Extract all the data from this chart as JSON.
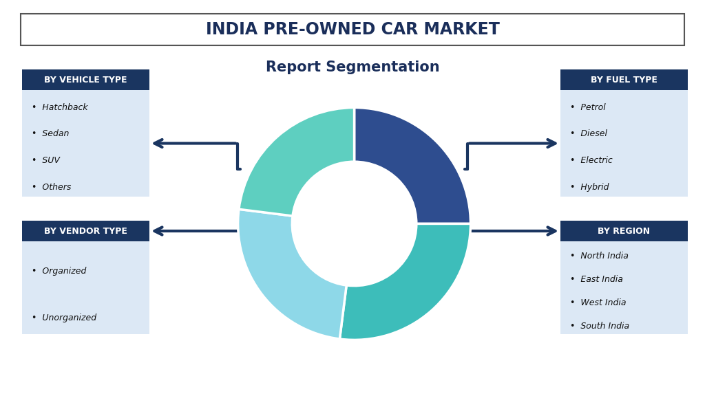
{
  "title": "INDIA PRE-OWNED CAR MARKET",
  "subtitle": "Report Segmentation",
  "background_color": "#ffffff",
  "title_box_color": "#ffffff",
  "title_border_color": "#555555",
  "title_text_color": "#1a2e5a",
  "subtitle_color": "#1a2e5a",
  "donut_colors": [
    "#2e4d8f",
    "#3dbdba",
    "#8ed8e8",
    "#5ecfc0"
  ],
  "donut_segments": [
    0.25,
    0.27,
    0.25,
    0.23
  ],
  "dark_header_bg": "#1a3560",
  "dark_header_text": "#ffffff",
  "light_box_bg": "#dce8f5",
  "light_box_text": "#111111",
  "arrow_color": "#1a3560",
  "boxes": [
    {
      "label": "BY VEHICLE TYPE",
      "items": [
        "Hatchback",
        "Sedan",
        "SUV",
        "Others"
      ],
      "side": "left",
      "row": "top"
    },
    {
      "label": "BY FUEL TYPE",
      "items": [
        "Petrol",
        "Diesel",
        "Electric",
        "Hybrid"
      ],
      "side": "right",
      "row": "top"
    },
    {
      "label": "BY VENDOR TYPE",
      "items": [
        "Organized",
        "Unorganized"
      ],
      "side": "left",
      "row": "bottom"
    },
    {
      "label": "BY REGION",
      "items": [
        "North India",
        "East India",
        "West India",
        "South India"
      ],
      "side": "right",
      "row": "bottom"
    }
  ]
}
